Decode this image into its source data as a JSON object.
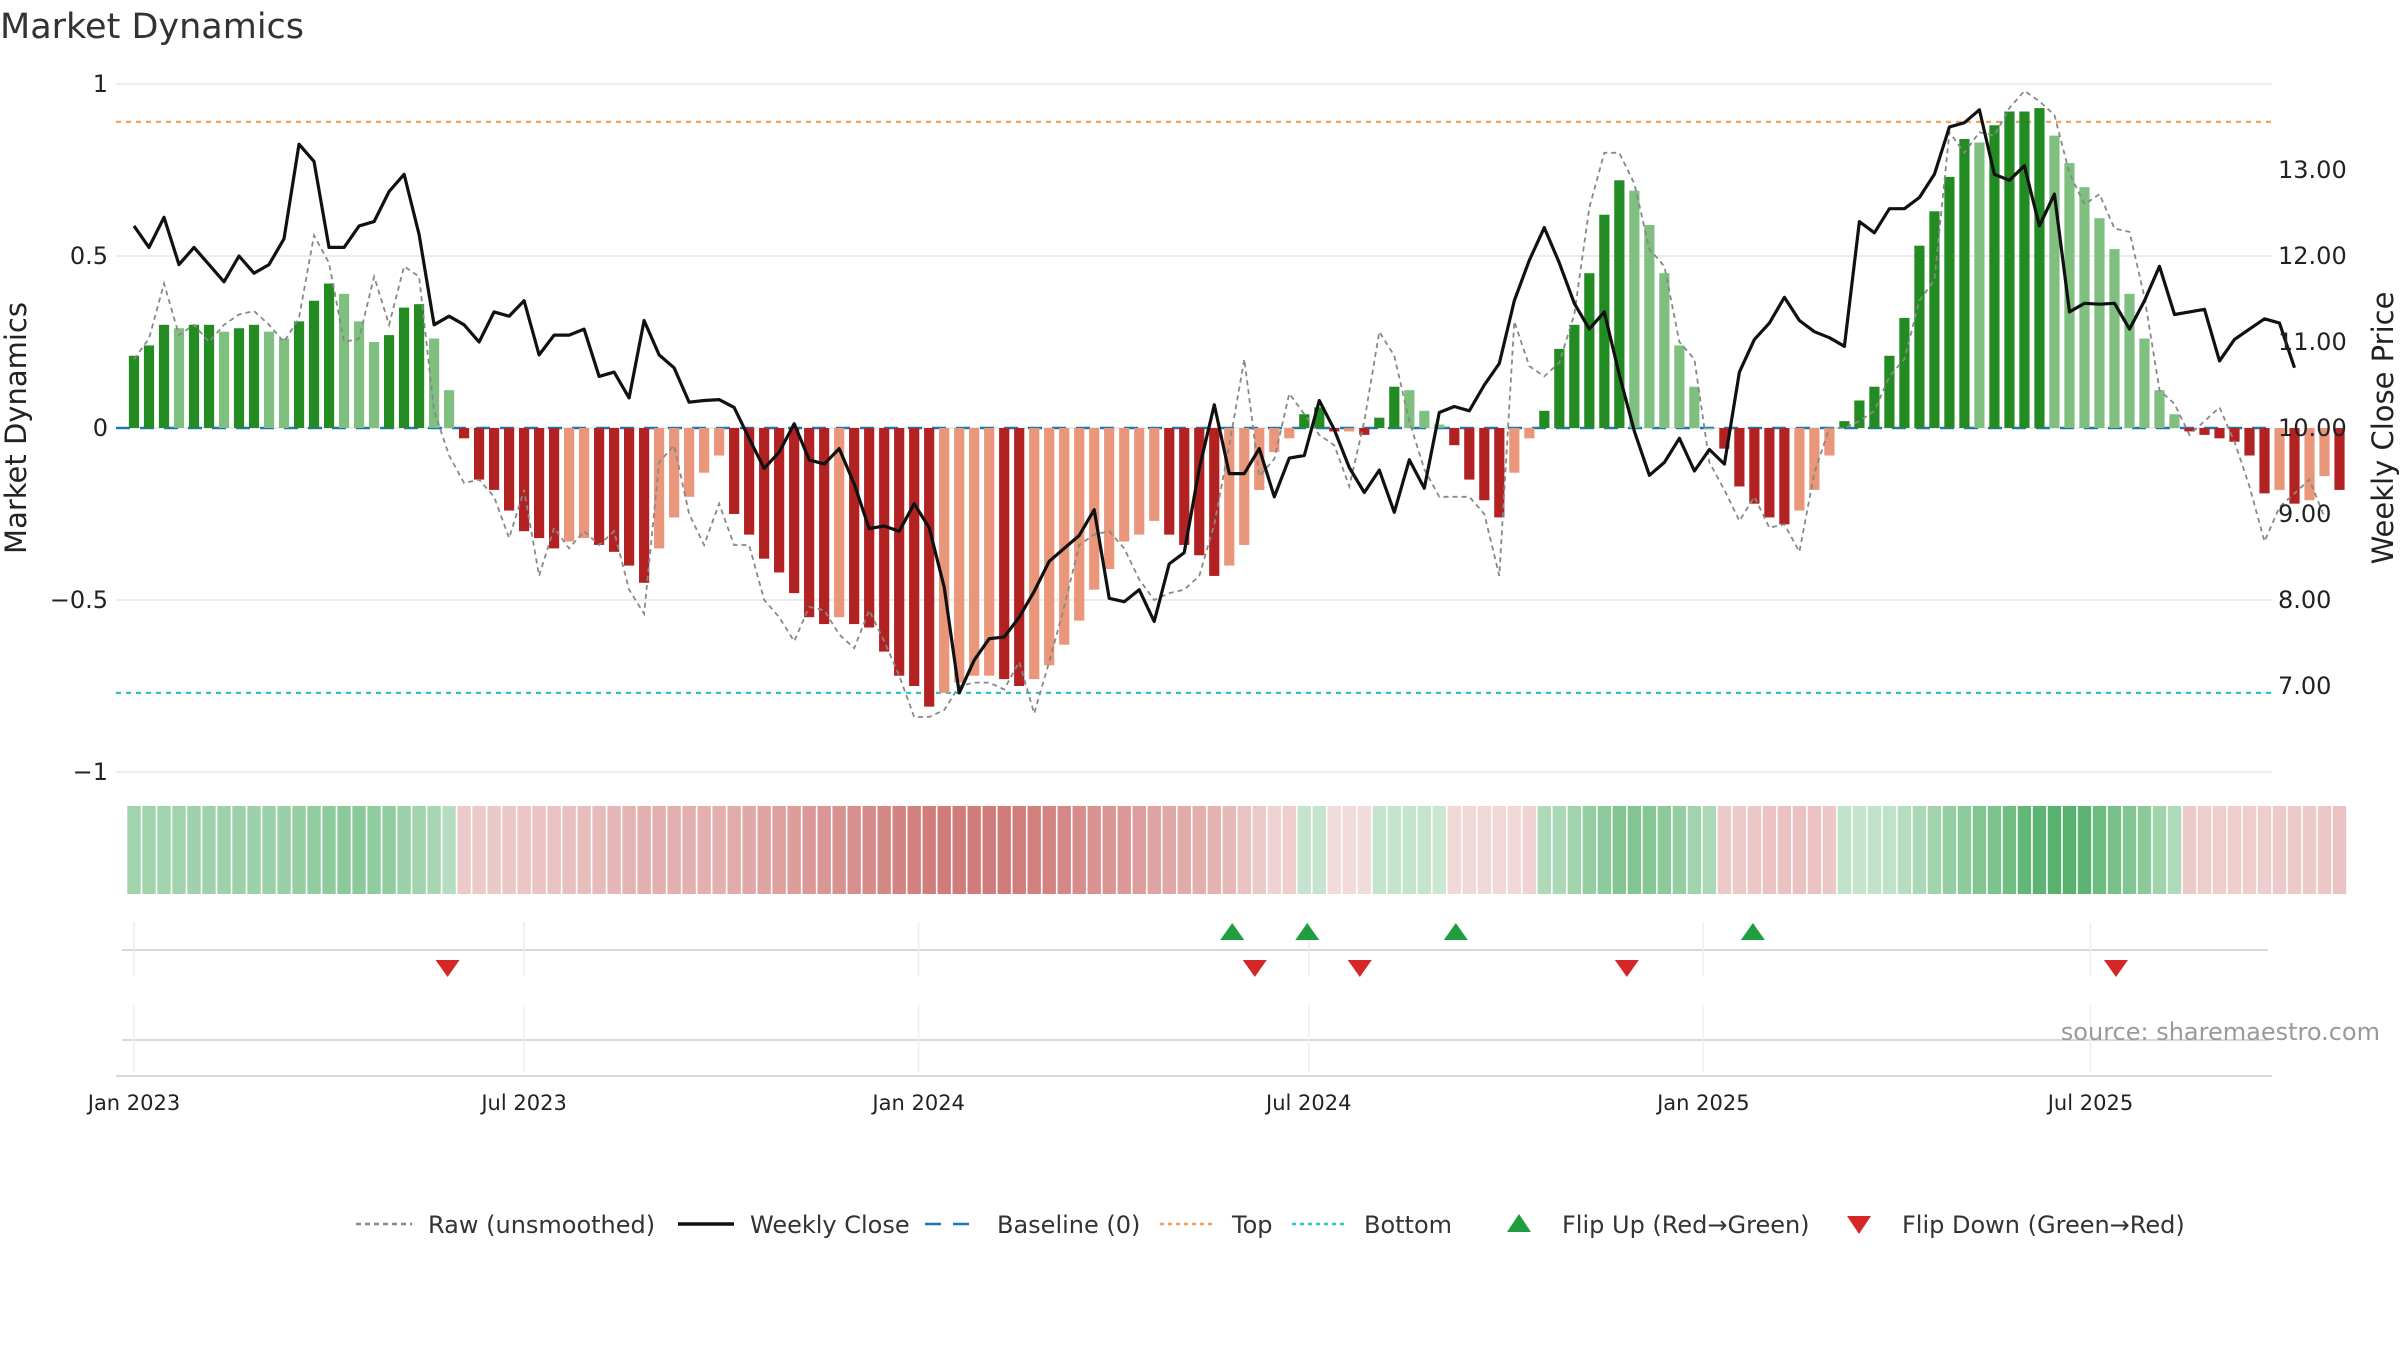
{
  "chart_data": {
    "type": "bar",
    "title": "Market Dynamics",
    "ylabel_left": "Market Dynamics",
    "ylabel_right": "Weekly Close Price",
    "ylim_left": [
      -1,
      1
    ],
    "ylim_right": [
      6.0,
      14.0
    ],
    "left_ticks": [
      {
        "value": 1,
        "label": "1"
      },
      {
        "value": 0.5,
        "label": "0.5"
      },
      {
        "value": 0,
        "label": "0"
      },
      {
        "value": -0.5,
        "label": "−0.5"
      },
      {
        "value": -1,
        "label": "−1"
      }
    ],
    "right_ticks": [
      {
        "value": 13,
        "label": "13.00"
      },
      {
        "value": 12,
        "label": "12.00"
      },
      {
        "value": 11,
        "label": "11.00"
      },
      {
        "value": 10,
        "label": "10.00"
      },
      {
        "value": 9,
        "label": "9.00"
      },
      {
        "value": 8,
        "label": "8.00"
      },
      {
        "value": 7,
        "label": "7.00"
      }
    ],
    "x_ticks": [
      {
        "week": 0,
        "label": "Jan 2023"
      },
      {
        "week": 26,
        "label": "Jul 2023"
      },
      {
        "week": 52.3,
        "label": "Jan 2024"
      },
      {
        "week": 78.3,
        "label": "Jul 2024"
      },
      {
        "week": 104.6,
        "label": "Jan 2025"
      },
      {
        "week": 130.4,
        "label": "Jul 2025"
      }
    ],
    "x_range_weeks": [
      -1.2,
      142.5
    ],
    "top_line": 0.89,
    "bottom_line": -0.77,
    "baseline": 0,
    "legend": [
      {
        "label": "Raw (unsmoothed)",
        "kind": "dashed",
        "color": "#888888"
      },
      {
        "label": "Weekly Close",
        "kind": "solid",
        "color": "#111111"
      },
      {
        "label": "Baseline (0)",
        "kind": "longdash",
        "color": "#1f77b4"
      },
      {
        "label": "Top",
        "kind": "dotted",
        "color": "#f4a261"
      },
      {
        "label": "Bottom",
        "kind": "dotted",
        "color": "#2ec4c4"
      },
      {
        "label": "Flip Up (Red→Green)",
        "kind": "up",
        "color": "#1e9e3e"
      },
      {
        "label": "Flip Down (Green→Red)",
        "kind": "down",
        "color": "#d62728"
      }
    ],
    "source": "source: sharemaestro.com",
    "colors": {
      "green_dark": "#228b22",
      "green_light": "#7fbf7f",
      "red_dark": "#b22222",
      "red_light": "#e9967a",
      "raw": "#888888",
      "close": "#111111",
      "baseline": "#1f77b4",
      "top": "#f4a261",
      "bottom": "#2ec4c4",
      "flip_up": "#1e9e3e",
      "flip_down": "#d62728"
    },
    "smoothed": [
      0.21,
      0.24,
      0.3,
      0.29,
      0.3,
      0.3,
      0.28,
      0.29,
      0.3,
      0.28,
      0.26,
      0.31,
      0.37,
      0.42,
      0.39,
      0.31,
      0.25,
      0.27,
      0.35,
      0.36,
      0.26,
      0.11,
      -0.03,
      -0.15,
      -0.18,
      -0.24,
      -0.3,
      -0.32,
      -0.35,
      -0.33,
      -0.32,
      -0.34,
      -0.36,
      -0.4,
      -0.45,
      -0.35,
      -0.26,
      -0.2,
      -0.13,
      -0.08,
      -0.25,
      -0.31,
      -0.38,
      -0.42,
      -0.48,
      -0.55,
      -0.57,
      -0.55,
      -0.57,
      -0.58,
      -0.65,
      -0.72,
      -0.75,
      -0.81,
      -0.77,
      -0.74,
      -0.72,
      -0.72,
      -0.73,
      -0.75,
      -0.73,
      -0.69,
      -0.63,
      -0.56,
      -0.47,
      -0.41,
      -0.33,
      -0.31,
      -0.27,
      -0.31,
      -0.34,
      -0.37,
      -0.43,
      -0.4,
      -0.34,
      -0.18,
      -0.07,
      -0.03,
      0.04,
      0.06,
      -0.01,
      -0.01,
      -0.02,
      0.03,
      0.12,
      0.11,
      0.05,
      0.01,
      -0.05,
      -0.15,
      -0.21,
      -0.26,
      -0.13,
      -0.03,
      0.05,
      0.23,
      0.3,
      0.45,
      0.62,
      0.72,
      0.69,
      0.59,
      0.45,
      0.24,
      0.12,
      0.0,
      -0.06,
      -0.17,
      -0.22,
      -0.26,
      -0.28,
      -0.24,
      -0.18,
      -0.08,
      0.02,
      0.08,
      0.12,
      0.21,
      0.32,
      0.53,
      0.63,
      0.73,
      0.84,
      0.83,
      0.88,
      0.92,
      0.92,
      0.93,
      0.85,
      0.77,
      0.7,
      0.61,
      0.52,
      0.39,
      0.26,
      0.11,
      0.04,
      -0.01,
      -0.02,
      -0.03,
      -0.04,
      -0.08,
      -0.19,
      -0.18,
      -0.22,
      -0.21,
      -0.14,
      -0.18
    ],
    "raw": [
      0.2,
      0.26,
      0.42,
      0.27,
      0.3,
      0.25,
      0.3,
      0.33,
      0.34,
      0.3,
      0.25,
      0.32,
      0.56,
      0.48,
      0.25,
      0.26,
      0.44,
      0.3,
      0.47,
      0.44,
      0.05,
      -0.08,
      -0.16,
      -0.15,
      -0.2,
      -0.32,
      -0.18,
      -0.43,
      -0.29,
      -0.35,
      -0.3,
      -0.34,
      -0.3,
      -0.47,
      -0.54,
      -0.1,
      -0.05,
      -0.25,
      -0.34,
      -0.22,
      -0.34,
      -0.34,
      -0.5,
      -0.55,
      -0.62,
      -0.52,
      -0.53,
      -0.6,
      -0.64,
      -0.53,
      -0.62,
      -0.72,
      -0.84,
      -0.84,
      -0.82,
      -0.75,
      -0.74,
      -0.74,
      -0.76,
      -0.68,
      -0.83,
      -0.68,
      -0.52,
      -0.34,
      -0.31,
      -0.3,
      -0.35,
      -0.44,
      -0.5,
      -0.48,
      -0.47,
      -0.43,
      -0.28,
      -0.05,
      0.2,
      -0.14,
      -0.09,
      0.1,
      0.04,
      -0.02,
      -0.05,
      -0.17,
      0.02,
      0.28,
      0.21,
      0.02,
      -0.12,
      -0.2,
      -0.2,
      -0.2,
      -0.25,
      -0.43,
      0.31,
      0.18,
      0.15,
      0.19,
      0.33,
      0.64,
      0.8,
      0.8,
      0.71,
      0.52,
      0.47,
      0.25,
      0.2,
      -0.1,
      -0.18,
      -0.27,
      -0.2,
      -0.29,
      -0.28,
      -0.36,
      -0.13,
      0.0,
      0.0,
      0.02,
      0.05,
      0.15,
      0.2,
      0.37,
      0.43,
      0.86,
      0.8,
      0.86,
      0.85,
      0.93,
      0.98,
      0.95,
      0.91,
      0.74,
      0.65,
      0.68,
      0.58,
      0.57,
      0.38,
      0.11,
      0.07,
      -0.02,
      0.02,
      0.06,
      -0.04,
      -0.17,
      -0.33,
      -0.23,
      -0.19,
      -0.15,
      -0.26
    ],
    "close": [
      12.35,
      12.1,
      12.45,
      11.9,
      12.1,
      11.9,
      11.7,
      12.0,
      11.8,
      11.9,
      12.2,
      13.3,
      13.1,
      12.1,
      12.1,
      12.35,
      12.4,
      12.75,
      12.95,
      12.25,
      11.2,
      11.3,
      11.2,
      11.0,
      11.35,
      11.3,
      11.48,
      10.85,
      11.08,
      11.08,
      11.15,
      10.6,
      10.65,
      10.35,
      11.25,
      10.85,
      10.7,
      10.3,
      10.32,
      10.33,
      10.24,
      9.88,
      9.53,
      9.72,
      10.05,
      9.63,
      9.58,
      9.76,
      9.35,
      8.83,
      8.86,
      8.8,
      9.12,
      8.84,
      8.15,
      6.92,
      7.3,
      7.55,
      7.57,
      7.8,
      8.1,
      8.45,
      8.6,
      8.75,
      9.05,
      8.02,
      7.98,
      8.12,
      7.75,
      8.42,
      8.55,
      9.53,
      10.27,
      9.47,
      9.47,
      9.76,
      9.2,
      9.65,
      9.68,
      10.32,
      9.98,
      9.54,
      9.25,
      9.51,
      9.02,
      9.63,
      9.3,
      10.18,
      10.25,
      10.2,
      10.5,
      10.75,
      11.48,
      11.95,
      12.33,
      11.92,
      11.45,
      11.15,
      11.35,
      10.62,
      9.96,
      9.45,
      9.6,
      9.88,
      9.5,
      9.75,
      9.58,
      10.65,
      11.03,
      11.22,
      11.52,
      11.25,
      11.12,
      11.05,
      10.95,
      12.4,
      12.27,
      12.55,
      12.55,
      12.68,
      12.95,
      13.5,
      13.55,
      13.7,
      12.95,
      12.88,
      13.05,
      12.35,
      12.72,
      11.35,
      11.45,
      11.44,
      11.45,
      11.15,
      11.48,
      11.88,
      11.32,
      11.35,
      11.38,
      10.78,
      11.03,
      11.15,
      11.27,
      11.22,
      10.7
    ],
    "strip_intensity": [
      0.45,
      0.45,
      0.45,
      0.45,
      0.46,
      0.46,
      0.47,
      0.47,
      0.48,
      0.48,
      0.49,
      0.5,
      0.52,
      0.54,
      0.56,
      0.56,
      0.54,
      0.52,
      0.48,
      0.45,
      0.42,
      0.35,
      0.3,
      0.3,
      0.31,
      0.32,
      0.33,
      0.34,
      0.35,
      0.36,
      0.37,
      0.39,
      0.41,
      0.43,
      0.45,
      0.45,
      0.45,
      0.45,
      0.45,
      0.45,
      0.48,
      0.5,
      0.52,
      0.54,
      0.56,
      0.58,
      0.6,
      0.62,
      0.64,
      0.66,
      0.68,
      0.7,
      0.72,
      0.74,
      0.75,
      0.75,
      0.75,
      0.75,
      0.75,
      0.74,
      0.72,
      0.7,
      0.68,
      0.65,
      0.62,
      0.6,
      0.58,
      0.55,
      0.52,
      0.5,
      0.48,
      0.46,
      0.44,
      0.4,
      0.35,
      0.3,
      0.25,
      0.28,
      0.28,
      0.28,
      0.2,
      0.2,
      0.2,
      0.28,
      0.28,
      0.28,
      0.28,
      0.25,
      0.22,
      0.22,
      0.22,
      0.22,
      0.22,
      0.25,
      0.38,
      0.4,
      0.45,
      0.5,
      0.55,
      0.6,
      0.6,
      0.58,
      0.55,
      0.5,
      0.45,
      0.4,
      0.3,
      0.3,
      0.32,
      0.34,
      0.35,
      0.35,
      0.35,
      0.32,
      0.3,
      0.28,
      0.3,
      0.3,
      0.35,
      0.4,
      0.45,
      0.5,
      0.55,
      0.6,
      0.62,
      0.68,
      0.75,
      0.78,
      0.8,
      0.8,
      0.78,
      0.7,
      0.65,
      0.6,
      0.55,
      0.45,
      0.38,
      0.3,
      0.28,
      0.28,
      0.28,
      0.28,
      0.28,
      0.3,
      0.3,
      0.3,
      0.32,
      0.35
    ],
    "flip_up_weeks": [
      73.2,
      78.2,
      88.1,
      107.9
    ],
    "flip_down_weeks": [
      20.9,
      74.7,
      81.7,
      99.5,
      132.1
    ]
  }
}
